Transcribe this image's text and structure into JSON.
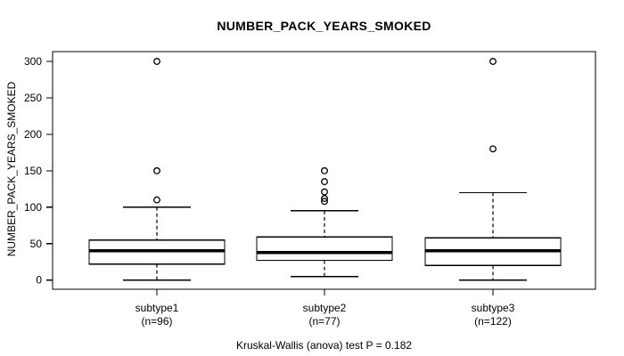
{
  "chart_data": {
    "type": "boxplot",
    "title": "NUMBER_PACK_YEARS_SMOKED",
    "ylabel": "NUMBER_PACK_YEARS_SMOKED",
    "xlabel": "",
    "ylim": [
      0,
      300
    ],
    "yticks": [
      0,
      50,
      100,
      150,
      200,
      250,
      300
    ],
    "grid": false,
    "legend": "none",
    "annotation": "Kruskal-Wallis (anova) test P = 0.182",
    "groups": [
      {
        "label": "subtype1",
        "n_label": "(n=96)",
        "n": 96,
        "whisker_low": 0,
        "q1": 22,
        "median": 40,
        "q3": 55,
        "whisker_high": 100,
        "outliers": [
          110,
          150,
          300
        ]
      },
      {
        "label": "subtype2",
        "n_label": "(n=77)",
        "n": 77,
        "whisker_low": 5,
        "q1": 27,
        "median": 38,
        "q3": 59,
        "whisker_high": 95,
        "outliers": [
          108,
          112,
          121,
          135,
          150
        ]
      },
      {
        "label": "subtype3",
        "n_label": "(n=122)",
        "n": 122,
        "whisker_low": 0,
        "q1": 20,
        "median": 40,
        "q3": 58,
        "whisker_high": 120,
        "outliers": [
          180,
          300
        ]
      }
    ],
    "style": {
      "box_fill": "#ffffff",
      "line_color": "#000000",
      "background": "#ffffff"
    }
  }
}
